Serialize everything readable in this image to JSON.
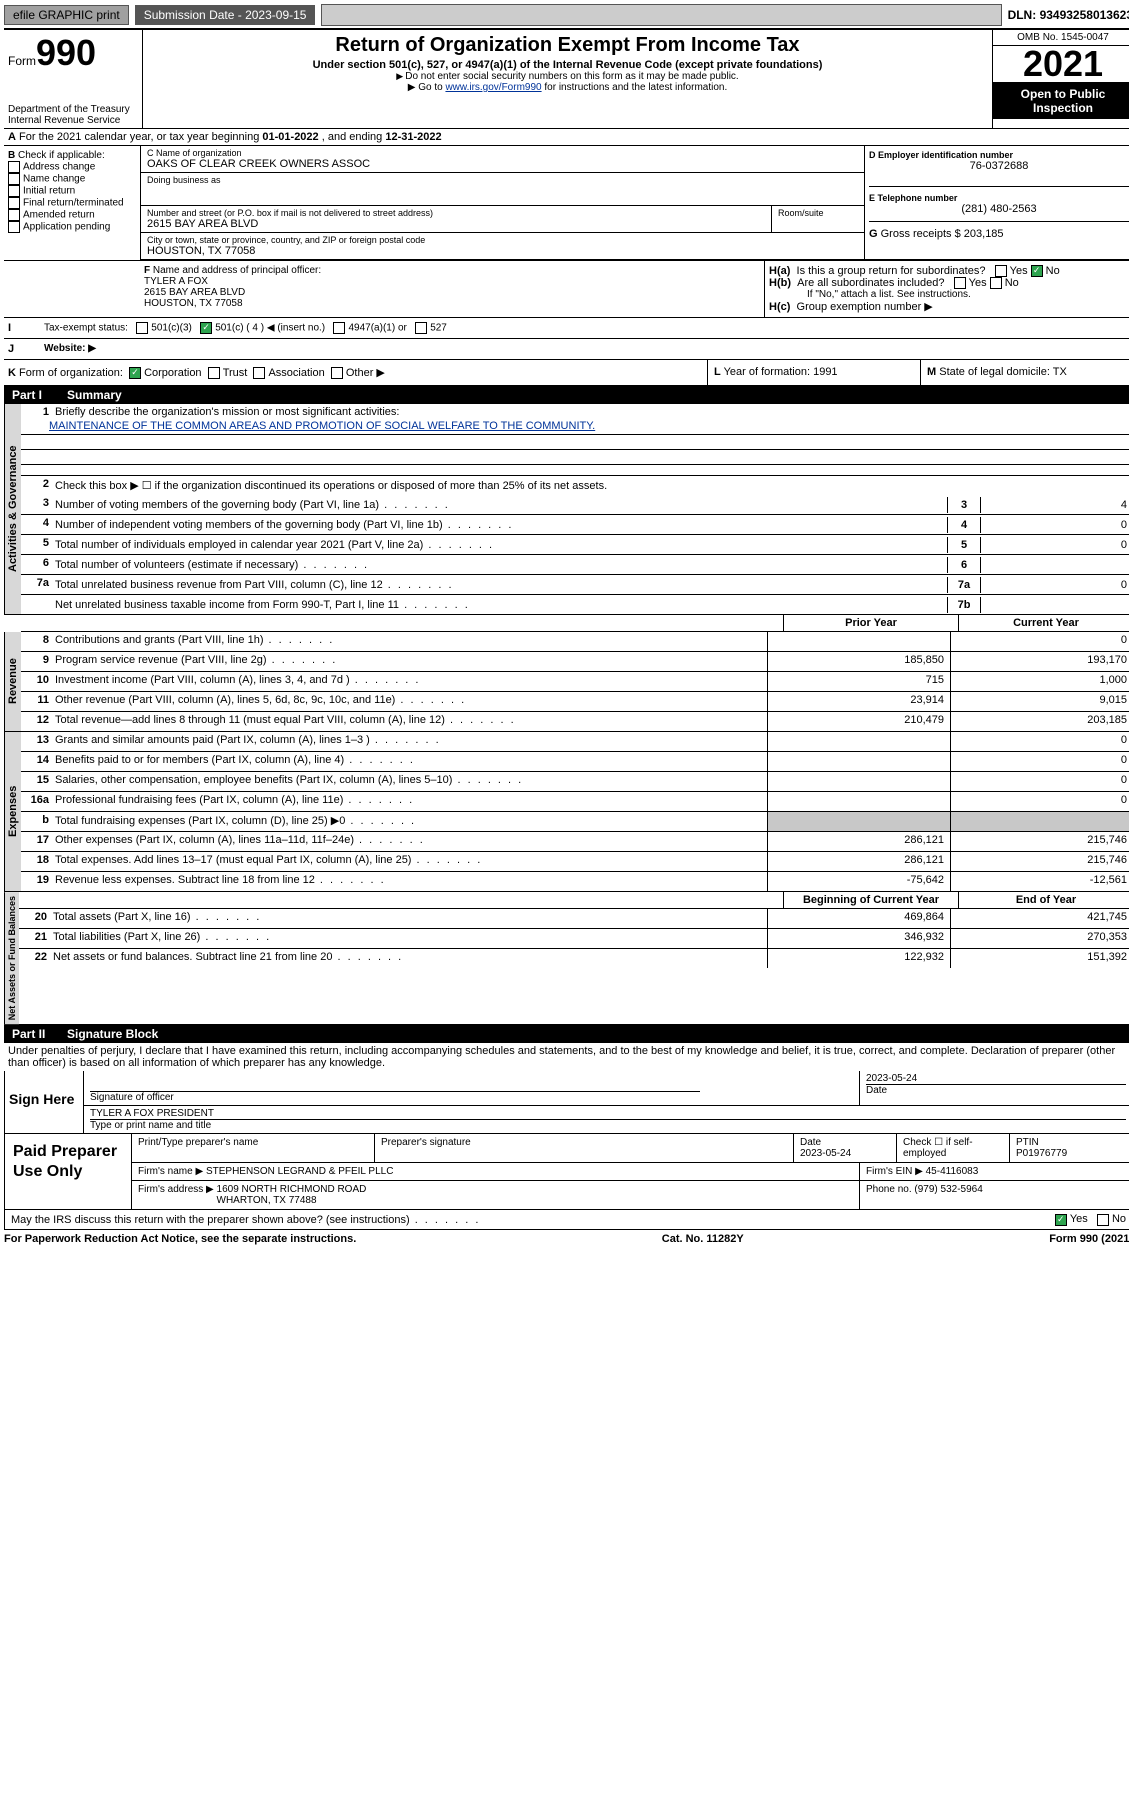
{
  "top": {
    "efile": "efile GRAPHIC print",
    "submission_label": "Submission Date - ",
    "submission_date": "2023-09-15",
    "dln_label": "DLN: ",
    "dln": "93493258013623"
  },
  "header": {
    "form_word": "Form",
    "form_no": "990",
    "dept": "Department of the Treasury",
    "irs": "Internal Revenue Service",
    "title": "Return of Organization Exempt From Income Tax",
    "sub": "Under section 501(c), 527, or 4947(a)(1) of the Internal Revenue Code (except private foundations)",
    "note1": "Do not enter social security numbers on this form as it may be made public.",
    "note2_pre": "Go to ",
    "note2_link": "www.irs.gov/Form990",
    "note2_post": " for instructions and the latest information.",
    "omb": "OMB No. 1545-0047",
    "year": "2021",
    "inspection": "Open to Public Inspection"
  },
  "row_a": {
    "label": "A",
    "text_pre": "For the 2021 calendar year, or tax year beginning ",
    "begin": "01-01-2022",
    "mid": " , and ending ",
    "end": "12-31-2022"
  },
  "b": {
    "label": "B",
    "heading": "Check if applicable:",
    "items": [
      "Address change",
      "Name change",
      "Initial return",
      "Final return/terminated",
      "Amended return",
      "Application pending"
    ]
  },
  "c": {
    "name_label": "C Name of organization",
    "name": "OAKS OF CLEAR CREEK OWNERS ASSOC",
    "dba_label": "Doing business as",
    "dba": "",
    "street_label": "Number and street (or P.O. box if mail is not delivered to street address)",
    "room_label": "Room/suite",
    "street": "2615 BAY AREA BLVD",
    "city_label": "City or town, state or province, country, and ZIP or foreign postal code",
    "city": "HOUSTON, TX  77058"
  },
  "d": {
    "label": "D Employer identification number",
    "value": "76-0372688"
  },
  "e": {
    "label": "E Telephone number",
    "value": "(281) 480-2563"
  },
  "g": {
    "label": "G",
    "text": "Gross receipts $",
    "value": "203,185"
  },
  "f": {
    "label": "F",
    "heading": "Name and address of principal officer:",
    "name": "TYLER A FOX",
    "street": "2615 BAY AREA BLVD",
    "city": "HOUSTON, TX  77058"
  },
  "h": {
    "a_label": "H(a)",
    "a_text": "Is this a group return for subordinates?",
    "a_yes": "Yes",
    "a_no": "No",
    "b_label": "H(b)",
    "b_text": "Are all subordinates included?",
    "b_note": "If \"No,\" attach a list. See instructions.",
    "c_label": "H(c)",
    "c_text": "Group exemption number ▶"
  },
  "i": {
    "label": "I",
    "heading": "Tax-exempt status:",
    "opt1": "501(c)(3)",
    "opt2_pre": "501(c) ( ",
    "opt2_n": "4",
    "opt2_post": " ) ◀ (insert no.)",
    "opt3": "4947(a)(1) or",
    "opt4": "527"
  },
  "j": {
    "label": "J",
    "heading": "Website: ▶",
    "value": ""
  },
  "k": {
    "label": "K",
    "heading": "Form of organization:",
    "opts": [
      "Corporation",
      "Trust",
      "Association",
      "Other ▶"
    ]
  },
  "l": {
    "label": "L",
    "text": "Year of formation:",
    "value": "1991"
  },
  "m": {
    "label": "M",
    "text": "State of legal domicile:",
    "value": "TX"
  },
  "part1": {
    "num": "Part I",
    "title": "Summary"
  },
  "summary": {
    "gov_label": "Activities & Governance",
    "line1_label": "1",
    "line1_text": "Briefly describe the organization's mission or most significant activities:",
    "line1_val": "MAINTENANCE OF THE COMMON AREAS AND PROMOTION OF SOCIAL WELFARE TO THE COMMUNITY.",
    "line2_label": "2",
    "line2_text": "Check this box ▶ ☐  if the organization discontinued its operations or disposed of more than 25% of its net assets.",
    "lines_nv": [
      {
        "n": "3",
        "text": "Number of voting members of the governing body (Part VI, line 1a)",
        "box": "3",
        "val": "4"
      },
      {
        "n": "4",
        "text": "Number of independent voting members of the governing body (Part VI, line 1b)",
        "box": "4",
        "val": "0"
      },
      {
        "n": "5",
        "text": "Total number of individuals employed in calendar year 2021 (Part V, line 2a)",
        "box": "5",
        "val": "0"
      },
      {
        "n": "6",
        "text": "Total number of volunteers (estimate if necessary)",
        "box": "6",
        "val": ""
      },
      {
        "n": "7a",
        "text": "Total unrelated business revenue from Part VIII, column (C), line 12",
        "box": "7a",
        "val": "0"
      },
      {
        "n": "",
        "text": "Net unrelated business taxable income from Form 990-T, Part I, line 11",
        "box": "7b",
        "val": ""
      }
    ],
    "col_prior": "Prior Year",
    "col_current": "Current Year",
    "rev_label": "Revenue",
    "rev_lines": [
      {
        "n": "8",
        "text": "Contributions and grants (Part VIII, line 1h)",
        "p": "",
        "c": "0"
      },
      {
        "n": "9",
        "text": "Program service revenue (Part VIII, line 2g)",
        "p": "185,850",
        "c": "193,170"
      },
      {
        "n": "10",
        "text": "Investment income (Part VIII, column (A), lines 3, 4, and 7d )",
        "p": "715",
        "c": "1,000"
      },
      {
        "n": "11",
        "text": "Other revenue (Part VIII, column (A), lines 5, 6d, 8c, 9c, 10c, and 11e)",
        "p": "23,914",
        "c": "9,015"
      },
      {
        "n": "12",
        "text": "Total revenue—add lines 8 through 11 (must equal Part VIII, column (A), line 12)",
        "p": "210,479",
        "c": "203,185"
      }
    ],
    "exp_label": "Expenses",
    "exp_lines": [
      {
        "n": "13",
        "text": "Grants and similar amounts paid (Part IX, column (A), lines 1–3 )",
        "p": "",
        "c": "0"
      },
      {
        "n": "14",
        "text": "Benefits paid to or for members (Part IX, column (A), line 4)",
        "p": "",
        "c": "0"
      },
      {
        "n": "15",
        "text": "Salaries, other compensation, employee benefits (Part IX, column (A), lines 5–10)",
        "p": "",
        "c": "0"
      },
      {
        "n": "16a",
        "text": "Professional fundraising fees (Part IX, column (A), line 11e)",
        "p": "",
        "c": "0"
      },
      {
        "n": "b",
        "text": "Total fundraising expenses (Part IX, column (D), line 25) ▶0",
        "p": "SHADE",
        "c": "SHADE"
      },
      {
        "n": "17",
        "text": "Other expenses (Part IX, column (A), lines 11a–11d, 11f–24e)",
        "p": "286,121",
        "c": "215,746"
      },
      {
        "n": "18",
        "text": "Total expenses. Add lines 13–17 (must equal Part IX, column (A), line 25)",
        "p": "286,121",
        "c": "215,746"
      },
      {
        "n": "19",
        "text": "Revenue less expenses. Subtract line 18 from line 12",
        "p": "-75,642",
        "c": "-12,561"
      }
    ],
    "na_label": "Net Assets or Fund Balances",
    "na_head_p": "Beginning of Current Year",
    "na_head_c": "End of Year",
    "na_lines": [
      {
        "n": "20",
        "text": "Total assets (Part X, line 16)",
        "p": "469,864",
        "c": "421,745"
      },
      {
        "n": "21",
        "text": "Total liabilities (Part X, line 26)",
        "p": "346,932",
        "c": "270,353"
      },
      {
        "n": "22",
        "text": "Net assets or fund balances. Subtract line 21 from line 20",
        "p": "122,932",
        "c": "151,392"
      }
    ]
  },
  "part2": {
    "num": "Part II",
    "title": "Signature Block"
  },
  "sig": {
    "penalty": "Under penalties of perjury, I declare that I have examined this return, including accompanying schedules and statements, and to the best of my knowledge and belief, it is true, correct, and complete. Declaration of preparer (other than officer) is based on all information of which preparer has any knowledge.",
    "left": "Sign Here",
    "sig_label": "Signature of officer",
    "date_label": "Date",
    "date_val": "2023-05-24",
    "name": "TYLER A FOX  PRESIDENT",
    "name_label": "Type or print name and title"
  },
  "prep": {
    "left": "Paid Preparer Use Only",
    "h1": "Print/Type preparer's name",
    "h2": "Preparer's signature",
    "h3": "Date",
    "h3v": "2023-05-24",
    "h4": "Check ☐ if self-employed",
    "h5": "PTIN",
    "h5v": "P01976779",
    "firm_label": "Firm's name   ▶",
    "firm": "STEPHENSON LEGRAND & PFEIL PLLC",
    "ein_label": "Firm's EIN ▶",
    "ein": "45-4116083",
    "addr_label": "Firm's address ▶",
    "addr1": "1609 NORTH RICHMOND ROAD",
    "addr2": "WHARTON, TX  77488",
    "phone_label": "Phone no.",
    "phone": "(979) 532-5964"
  },
  "bottom": {
    "q": "May the IRS discuss this return with the preparer shown above? (see instructions)",
    "yes": "Yes",
    "no": "No"
  },
  "footer": {
    "left": "For Paperwork Reduction Act Notice, see the separate instructions.",
    "mid": "Cat. No. 11282Y",
    "right": "Form 990 (2021)"
  }
}
